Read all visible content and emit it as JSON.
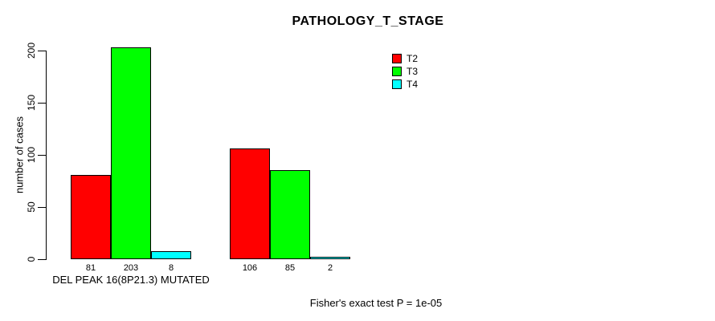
{
  "title": "PATHOLOGY_T_STAGE",
  "footer": "Fisher's exact test P = 1e-05",
  "chart_data": {
    "type": "bar",
    "title": "PATHOLOGY_T_STAGE",
    "xlabel": "",
    "ylabel": "number of cases",
    "categories": [
      "DEL PEAK 16(8P21.3) MUTATED",
      ""
    ],
    "series": [
      {
        "name": "T2",
        "color": "#FF0000",
        "values": [
          81,
          106
        ]
      },
      {
        "name": "T3",
        "color": "#00FF00",
        "values": [
          203,
          85
        ]
      },
      {
        "name": "T4",
        "color": "#00FFFF",
        "values": [
          8,
          2
        ]
      }
    ],
    "yticks": [
      0,
      50,
      100,
      150,
      200
    ],
    "ylim": [
      0,
      200
    ],
    "grid": false,
    "legend_position": "top-right",
    "bar_value_labels": true,
    "annotation": "Fisher's exact test P = 1e-05"
  }
}
